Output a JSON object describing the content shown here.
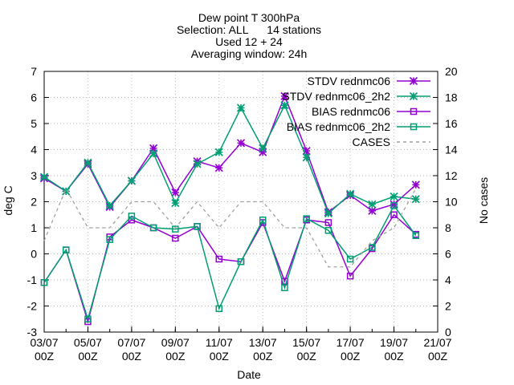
{
  "chart_data": {
    "type": "line",
    "title_lines": [
      "Dew point T 300hPa",
      "Selection: ALL      14 stations",
      "Used 12 + 24",
      "Averaging window: 24h"
    ],
    "xlabel": "Date",
    "ylabel": "deg C",
    "y2label": "No cases",
    "ylim": [
      -3,
      7
    ],
    "y2lim": [
      0,
      20
    ],
    "yticks": [
      -3,
      -2,
      -1,
      0,
      1,
      2,
      3,
      4,
      5,
      6,
      7
    ],
    "y2ticks": [
      0,
      2,
      4,
      6,
      8,
      10,
      12,
      14,
      16,
      18,
      20
    ],
    "xlim": [
      0,
      18
    ],
    "xticks": [
      {
        "x": 0,
        "line1": "03/07",
        "line2": "00Z"
      },
      {
        "x": 2,
        "line1": "05/07",
        "line2": "00Z"
      },
      {
        "x": 4,
        "line1": "07/07",
        "line2": "00Z"
      },
      {
        "x": 6,
        "line1": "09/07",
        "line2": "00Z"
      },
      {
        "x": 8,
        "line1": "11/07",
        "line2": "00Z"
      },
      {
        "x": 10,
        "line1": "13/07",
        "line2": "00Z"
      },
      {
        "x": 12,
        "line1": "15/07",
        "line2": "00Z"
      },
      {
        "x": 14,
        "line1": "17/07",
        "line2": "00Z"
      },
      {
        "x": 16,
        "line1": "19/07",
        "line2": "00Z"
      },
      {
        "x": 18,
        "line1": "21/07",
        "line2": "00Z"
      }
    ],
    "x": [
      0,
      1,
      2,
      3,
      4,
      5,
      6,
      7,
      8,
      9,
      10,
      11,
      12,
      13,
      14,
      15,
      16,
      17
    ],
    "legend_position": "top-right",
    "grid": true,
    "series": [
      {
        "name": "STDV rednmc06",
        "color": "#9400d3",
        "marker": "star",
        "axis": "y1",
        "dash": false,
        "values": [
          2.9,
          2.4,
          3.45,
          1.8,
          2.8,
          4.05,
          2.35,
          3.55,
          3.3,
          4.25,
          3.9,
          6.05,
          3.95,
          1.6,
          2.25,
          1.65,
          1.9,
          2.65
        ]
      },
      {
        "name": "STDV rednmc06_2h2",
        "color": "#009e73",
        "marker": "star",
        "axis": "y1",
        "dash": false,
        "values": [
          2.95,
          2.4,
          3.5,
          1.85,
          2.8,
          3.85,
          1.95,
          3.45,
          3.9,
          5.6,
          4.05,
          5.7,
          3.7,
          1.55,
          2.3,
          1.9,
          2.2,
          2.1
        ]
      },
      {
        "name": "BIAS rednmc06",
        "color": "#9400d3",
        "marker": "square",
        "axis": "y1",
        "dash": false,
        "values": [
          -1.1,
          0.15,
          -2.6,
          0.65,
          1.3,
          1.0,
          0.6,
          1.05,
          -0.2,
          -0.3,
          1.2,
          -1.05,
          1.3,
          1.2,
          -0.85,
          0.2,
          1.5,
          0.75
        ]
      },
      {
        "name": "BIAS rednmc06_2h2",
        "color": "#009e73",
        "marker": "square",
        "axis": "y1",
        "dash": false,
        "values": [
          -1.1,
          0.15,
          -2.5,
          0.55,
          1.45,
          1.0,
          0.95,
          1.05,
          -2.1,
          -0.3,
          1.3,
          -1.3,
          1.35,
          0.9,
          -0.2,
          0.25,
          1.85,
          0.7
        ]
      },
      {
        "name": "CASES",
        "color": "#a0a0a0",
        "marker": "none",
        "axis": "y2",
        "dash": true,
        "values": [
          7,
          11,
          8,
          8,
          10,
          10,
          8,
          10,
          8,
          10,
          10,
          8,
          8,
          5,
          5,
          7,
          8,
          11
        ]
      }
    ]
  }
}
